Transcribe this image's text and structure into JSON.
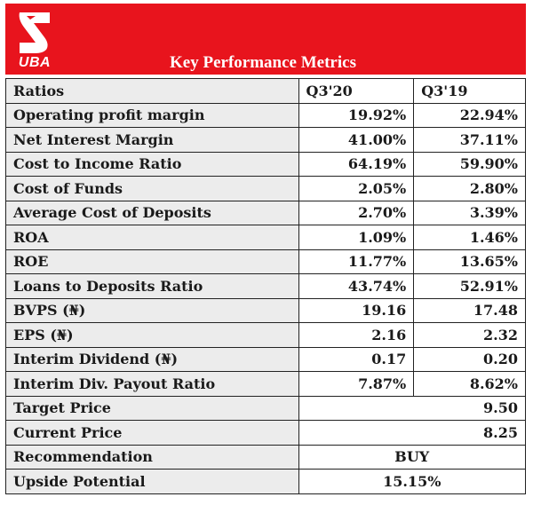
{
  "logo": {
    "text": "UBA"
  },
  "title": "Key Performance Metrics",
  "colors": {
    "header_bg": "#e8141d",
    "header_text": "#ffffff",
    "row_shade": "#ececec"
  },
  "header": {
    "label": "Ratios",
    "col1": "Q3'20",
    "col2": "Q3'19"
  },
  "rows": [
    {
      "label": "Operating profit margin",
      "q320": "19.92%",
      "q319": "22.94%"
    },
    {
      "label": "Net Interest Margin",
      "q320": "41.00%",
      "q319": "37.11%"
    },
    {
      "label": "Cost to Income Ratio",
      "q320": "64.19%",
      "q319": "59.90%"
    },
    {
      "label": "Cost of Funds",
      "q320": "2.05%",
      "q319": "2.80%"
    },
    {
      "label": "Average Cost of Deposits",
      "q320": "2.70%",
      "q319": "3.39%"
    },
    {
      "label": "ROA",
      "q320": "1.09%",
      "q319": "1.46%"
    },
    {
      "label": "ROE",
      "q320": "11.77%",
      "q319": "13.65%"
    },
    {
      "label": "Loans to Deposits Ratio",
      "q320": "43.74%",
      "q319": "52.91%"
    },
    {
      "label": "BVPS (₦)",
      "q320": "19.16",
      "q319": "17.48"
    },
    {
      "label": "EPS (₦)",
      "q320": "2.16",
      "q319": "2.32"
    },
    {
      "label": "Interim Dividend (₦)",
      "q320": "0.17",
      "q319": "0.20"
    },
    {
      "label": "Interim Div. Payout Ratio",
      "q320": "7.87%",
      "q319": "8.62%"
    }
  ],
  "summary": {
    "target_price": {
      "label": "Target Price",
      "value": "9.50"
    },
    "current_price": {
      "label": "Current Price",
      "value": "8.25"
    },
    "recommendation": {
      "label": "Recommendation",
      "value": "BUY"
    },
    "upside_potential": {
      "label": "Upside Potential",
      "value": "15.15%"
    }
  }
}
